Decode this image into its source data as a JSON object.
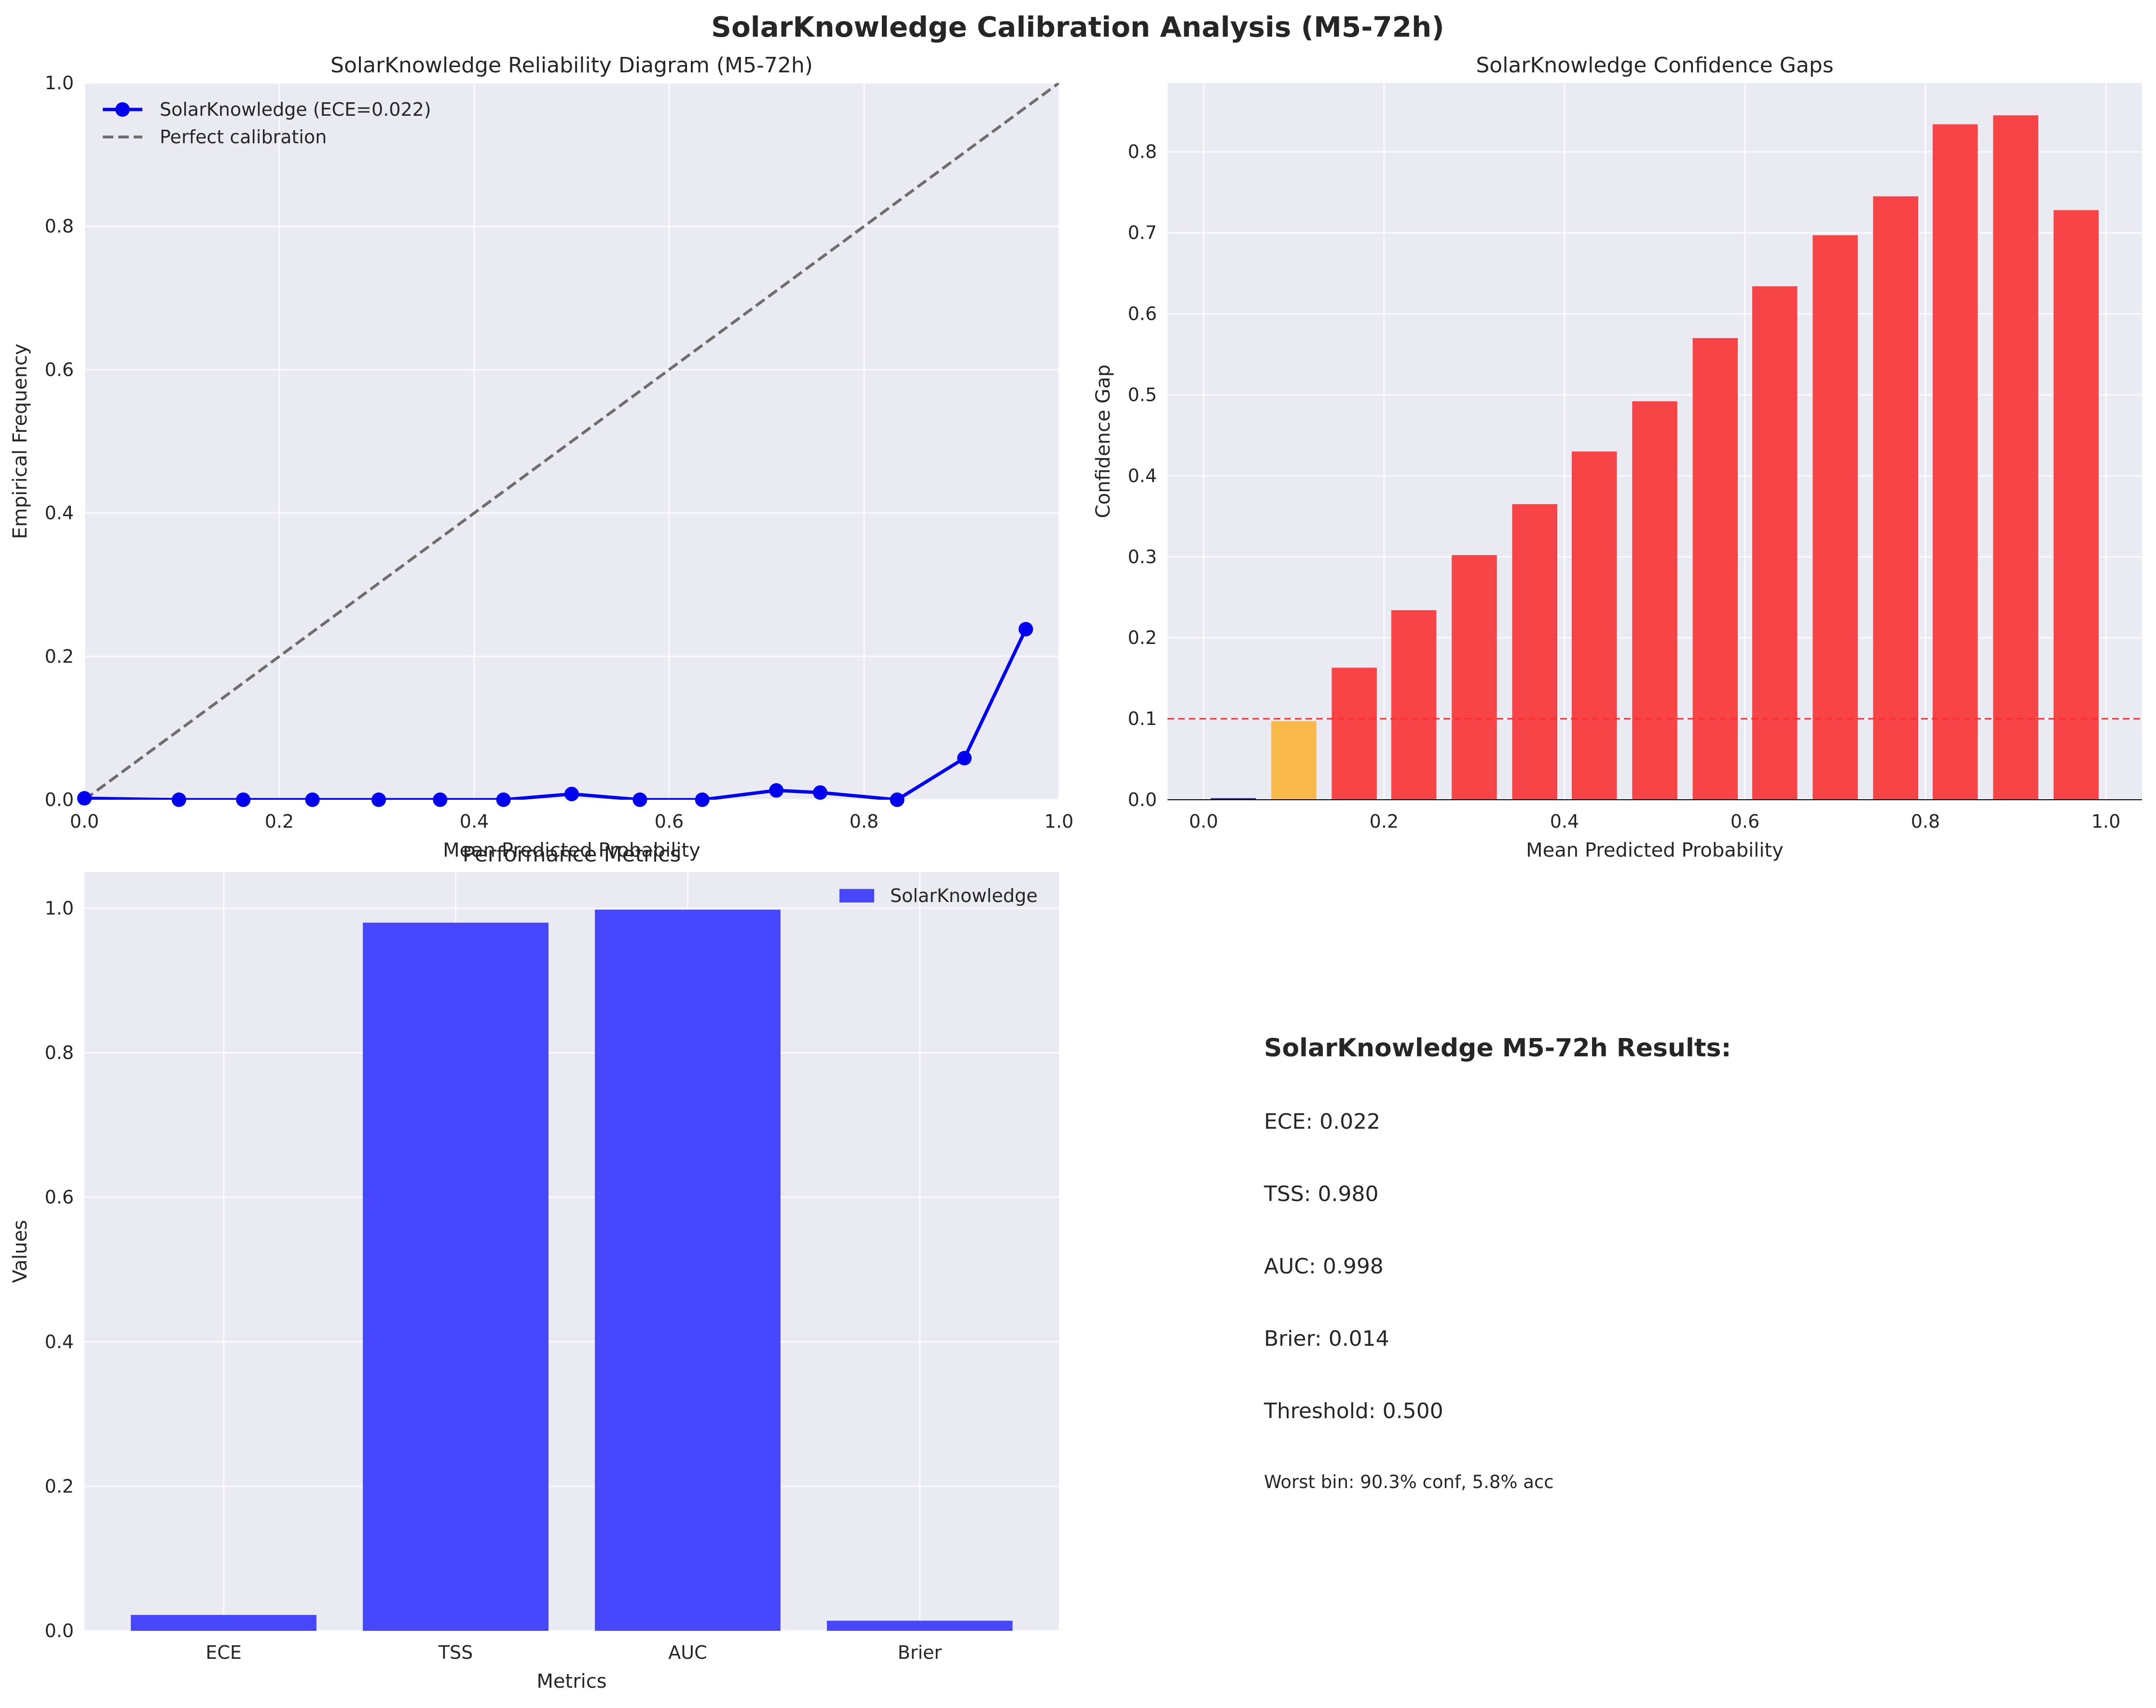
{
  "figure": {
    "suptitle": "SolarKnowledge Calibration Analysis (M5-72h)"
  },
  "colors": {
    "panel_bg": "#eaeaf2",
    "grid": "#ffffff",
    "series_blue": "#0000ee",
    "diagonal": "#6e6e6e",
    "bar_red": "#f74447",
    "bar_orange": "#f8b94a",
    "bar_navy": "#2e3192",
    "threshold_red": "#ff2a2a",
    "metric_blue": "#4747fd"
  },
  "chart_data": [
    {
      "type": "line",
      "title": "SolarKnowledge Reliability Diagram (M5-72h)",
      "xlabel": "Mean Predicted Probability",
      "ylabel": "Empirical Frequency",
      "xlim": [
        0,
        1
      ],
      "ylim": [
        0,
        1
      ],
      "xticks": [
        "0.0",
        "0.2",
        "0.4",
        "0.6",
        "0.8",
        "1.0"
      ],
      "yticks": [
        "0.0",
        "0.2",
        "0.4",
        "0.6",
        "0.8",
        "1.0"
      ],
      "grid": true,
      "legend_position": "top-left",
      "series": [
        {
          "name": "SolarKnowledge (ECE=0.022)",
          "color": "#0000ee",
          "marker": "circle",
          "x": [
            0.0,
            0.097,
            0.163,
            0.234,
            0.302,
            0.365,
            0.43,
            0.5,
            0.57,
            0.634,
            0.71,
            0.755,
            0.834,
            0.903,
            0.966
          ],
          "y": [
            0.002,
            0.0,
            0.0,
            0.0,
            0.0,
            0.0,
            0.0,
            0.008,
            0.0,
            0.0,
            0.013,
            0.01,
            0.0,
            0.058,
            0.238
          ]
        },
        {
          "name": "Perfect calibration",
          "color": "#6e6e6e",
          "dash": "dashed",
          "x": [
            0,
            1
          ],
          "y": [
            0,
            1
          ]
        }
      ]
    },
    {
      "type": "bar",
      "title": "SolarKnowledge Confidence Gaps",
      "xlabel": "Mean Predicted Probability",
      "ylabel": "Confidence Gap",
      "xlim": [
        -0.04,
        1.04
      ],
      "ylim": [
        0,
        0.885
      ],
      "xticks": [
        "0.0",
        "0.2",
        "0.4",
        "0.6",
        "0.8",
        "1.0"
      ],
      "yticks": [
        "0.0",
        "0.1",
        "0.2",
        "0.3",
        "0.4",
        "0.5",
        "0.6",
        "0.7",
        "0.8"
      ],
      "grid": true,
      "threshold_line": 0.1,
      "bar_width": 0.05,
      "bars": [
        {
          "x": 0.033,
          "value": 0.002,
          "color": "#2e3192"
        },
        {
          "x": 0.1,
          "value": 0.097,
          "color": "#f8b94a"
        },
        {
          "x": 0.167,
          "value": 0.163,
          "color": "#f74447"
        },
        {
          "x": 0.233,
          "value": 0.234,
          "color": "#f74447"
        },
        {
          "x": 0.3,
          "value": 0.302,
          "color": "#f74447"
        },
        {
          "x": 0.367,
          "value": 0.365,
          "color": "#f74447"
        },
        {
          "x": 0.433,
          "value": 0.43,
          "color": "#f74447"
        },
        {
          "x": 0.5,
          "value": 0.492,
          "color": "#f74447"
        },
        {
          "x": 0.567,
          "value": 0.57,
          "color": "#f74447"
        },
        {
          "x": 0.633,
          "value": 0.634,
          "color": "#f74447"
        },
        {
          "x": 0.7,
          "value": 0.697,
          "color": "#f74447"
        },
        {
          "x": 0.767,
          "value": 0.745,
          "color": "#f74447"
        },
        {
          "x": 0.833,
          "value": 0.834,
          "color": "#f74447"
        },
        {
          "x": 0.9,
          "value": 0.845,
          "color": "#f74447"
        },
        {
          "x": 0.967,
          "value": 0.728,
          "color": "#f74447"
        }
      ]
    },
    {
      "type": "bar",
      "title": "Performance Metrics",
      "xlabel": "Metrics",
      "ylabel": "Values",
      "ylim": [
        0,
        1.05
      ],
      "yticks": [
        "0.0",
        "0.2",
        "0.4",
        "0.6",
        "0.8",
        "1.0"
      ],
      "grid": true,
      "legend_position": "top-right",
      "categories": [
        "ECE",
        "TSS",
        "AUC",
        "Brier"
      ],
      "series": [
        {
          "name": "SolarKnowledge",
          "color": "#4747fd",
          "values": [
            0.022,
            0.98,
            0.998,
            0.014
          ]
        }
      ]
    }
  ],
  "results_panel": {
    "heading": "SolarKnowledge M5-72h Results:",
    "lines": [
      "ECE: 0.022",
      "TSS: 0.980",
      "AUC: 0.998",
      "Brier: 0.014",
      "Threshold: 0.500"
    ],
    "footnote": "Worst bin: 90.3% conf, 5.8% acc"
  }
}
